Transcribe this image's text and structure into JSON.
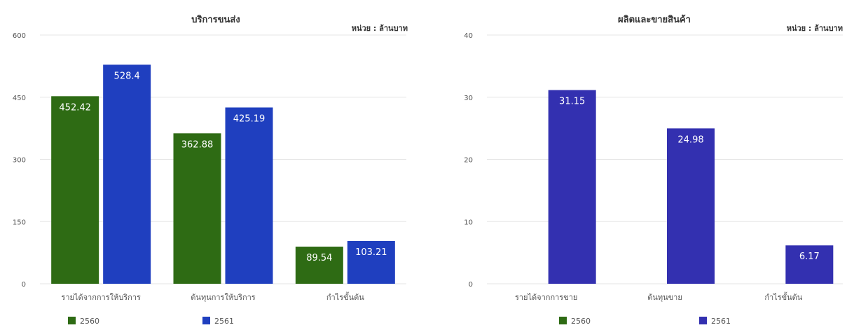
{
  "colors": {
    "y2560": "#2e6b14",
    "y2561": "#1f3fbf",
    "y2561_alt": "#3330b0",
    "grid": "#e6e6e6",
    "axis_text": "#555555"
  },
  "chart_data": [
    {
      "type": "bar",
      "title": "บริการขนส่ง",
      "unit": "หน่วย : ล้านบาท",
      "categories": [
        "รายได้จากการให้บริการ",
        "ต้นทุนการให้บริการ",
        "กำไรขั้นต้น"
      ],
      "series": [
        {
          "name": "2560",
          "color": "#2e6b14",
          "values": [
            452.42,
            362.88,
            89.54
          ]
        },
        {
          "name": "2561",
          "color": "#1f3fbf",
          "values": [
            528.4,
            425.19,
            103.21
          ]
        }
      ],
      "ylim": [
        0,
        600
      ],
      "yticks": [
        "0",
        "150",
        "300",
        "450",
        "600"
      ],
      "grid": true,
      "legend": "bottom-left"
    },
    {
      "type": "bar",
      "title": "ผลิตและขายสินค้า",
      "unit": "หน่วย : ล้านบาท",
      "categories": [
        "รายได้จากการขาย",
        "ต้นทุนขาย",
        "กำไรขั้นต้น"
      ],
      "series": [
        {
          "name": "2560",
          "color": "#2e6b14",
          "values": [
            null,
            null,
            null
          ]
        },
        {
          "name": "2561",
          "color": "#3330b0",
          "values": [
            31.15,
            24.98,
            6.17
          ]
        }
      ],
      "ylim": [
        0,
        40
      ],
      "yticks": [
        "0",
        "10",
        "20",
        "30",
        "40"
      ],
      "grid": true,
      "legend": "bottom-left"
    }
  ]
}
